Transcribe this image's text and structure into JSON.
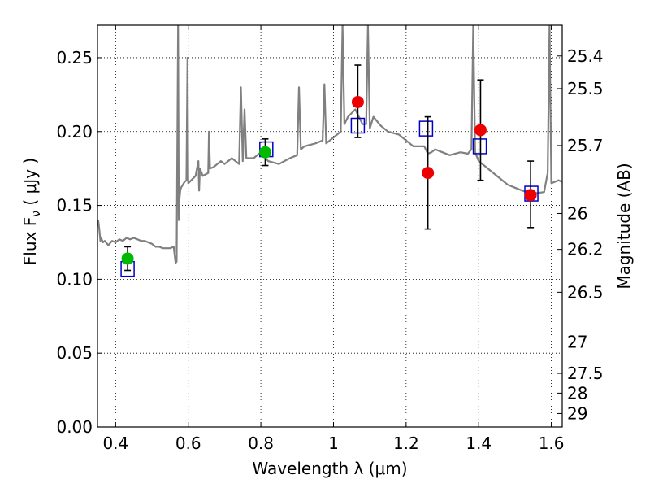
{
  "chart_data": {
    "type": "scatter",
    "xlabel": "Wavelength  λ (μm)",
    "ylabel": "Flux  F",
    "ylabel_sub": "ν",
    "ylabel_unit": "  ( μJy )",
    "y2label": "Magnitude (AB)",
    "xlim": [
      0.35,
      1.63
    ],
    "ylim": [
      0.0,
      0.272
    ],
    "grid": true,
    "x_ticks": [
      0.4,
      0.6,
      0.8,
      1.0,
      1.2,
      1.4,
      1.6
    ],
    "x_tick_labels": [
      "0.4",
      "0.6",
      "0.8",
      "1",
      "1.2",
      "1.4",
      "1.6"
    ],
    "y_ticks": [
      0.0,
      0.05,
      0.1,
      0.15,
      0.2,
      0.25
    ],
    "y_tick_labels": [
      "0.00",
      "0.05",
      "0.10",
      "0.15",
      "0.20",
      "0.25"
    ],
    "y2_ticks": [
      {
        "mag": 25.4,
        "label": "25.4"
      },
      {
        "mag": 25.5,
        "label": "25.5"
      },
      {
        "mag": 25.7,
        "label": "25.7"
      },
      {
        "mag": 26,
        "label": "26"
      },
      {
        "mag": 26.2,
        "label": "26.2"
      },
      {
        "mag": 26.5,
        "label": "26.5"
      },
      {
        "mag": 27,
        "label": "27"
      },
      {
        "mag": 27.5,
        "label": "27.5"
      },
      {
        "mag": 28,
        "label": "28"
      },
      {
        "mag": 29,
        "label": "29"
      }
    ],
    "colors": {
      "model_spectrum": "#808080",
      "model_photometry": "#0000cc",
      "observed_optical": "#00bb00",
      "observed_nir": "#ee0000",
      "errorbar": "#000000"
    },
    "series": [
      {
        "style": "line",
        "color": "#808080",
        "x": [
          0.352,
          0.355,
          0.358,
          0.36,
          0.365,
          0.37,
          0.38,
          0.39,
          0.4,
          0.41,
          0.42,
          0.43,
          0.44,
          0.45,
          0.46,
          0.47,
          0.48,
          0.49,
          0.5,
          0.51,
          0.52,
          0.53,
          0.54,
          0.55,
          0.56,
          0.565,
          0.568,
          0.572,
          0.574,
          0.576,
          0.578,
          0.58,
          0.59,
          0.595,
          0.598,
          0.6,
          0.62,
          0.628,
          0.63,
          0.632,
          0.64,
          0.655,
          0.657,
          0.66,
          0.67,
          0.68,
          0.69,
          0.7,
          0.72,
          0.74,
          0.745,
          0.75,
          0.755,
          0.76,
          0.78,
          0.8,
          0.82,
          0.85,
          0.88,
          0.9,
          0.905,
          0.91,
          0.92,
          0.95,
          0.97,
          0.975,
          0.98,
          1.0,
          1.02,
          1.025,
          1.03,
          1.04,
          1.06,
          1.08,
          1.09,
          1.095,
          1.1,
          1.11,
          1.13,
          1.15,
          1.18,
          1.2,
          1.22,
          1.24,
          1.25,
          1.26,
          1.27,
          1.28,
          1.3,
          1.32,
          1.35,
          1.37,
          1.38,
          1.385,
          1.39,
          1.4,
          1.42,
          1.44,
          1.46,
          1.48,
          1.5,
          1.52,
          1.55,
          1.58,
          1.59,
          1.595,
          1.6,
          1.61,
          1.62,
          1.63
        ],
        "y": [
          0.14,
          0.134,
          0.126,
          0.128,
          0.125,
          0.126,
          0.123,
          0.126,
          0.125,
          0.127,
          0.126,
          0.128,
          0.127,
          0.128,
          0.127,
          0.126,
          0.126,
          0.125,
          0.124,
          0.122,
          0.122,
          0.121,
          0.121,
          0.121,
          0.122,
          0.111,
          0.112,
          0.272,
          0.14,
          0.155,
          0.16,
          0.162,
          0.166,
          0.167,
          0.25,
          0.165,
          0.17,
          0.18,
          0.16,
          0.175,
          0.17,
          0.172,
          0.2,
          0.175,
          0.176,
          0.178,
          0.18,
          0.178,
          0.182,
          0.178,
          0.23,
          0.18,
          0.215,
          0.182,
          0.182,
          0.186,
          0.18,
          0.178,
          0.182,
          0.184,
          0.23,
          0.188,
          0.19,
          0.192,
          0.194,
          0.232,
          0.192,
          0.196,
          0.2,
          0.272,
          0.205,
          0.21,
          0.215,
          0.205,
          0.205,
          0.272,
          0.202,
          0.21,
          0.204,
          0.2,
          0.198,
          0.194,
          0.19,
          0.19,
          0.19,
          0.185,
          0.186,
          0.188,
          0.186,
          0.184,
          0.186,
          0.185,
          0.188,
          0.272,
          0.186,
          0.18,
          0.176,
          0.172,
          0.168,
          0.164,
          0.162,
          0.16,
          0.158,
          0.159,
          0.172,
          0.272,
          0.165,
          0.166,
          0.167,
          0.166
        ]
      },
      {
        "style": "open-square",
        "color": "#0000cc",
        "x": [
          0.433,
          0.815,
          1.067,
          1.255,
          1.403,
          1.545
        ],
        "y": [
          0.107,
          0.188,
          0.204,
          0.202,
          0.19,
          0.158
        ]
      },
      {
        "style": "filled-circle",
        "color": "#00bb00",
        "x": [
          0.433,
          0.812
        ],
        "y": [
          0.114,
          0.186
        ],
        "yerr_low": [
          0.106,
          0.177
        ],
        "yerr_high": [
          0.122,
          0.195
        ]
      },
      {
        "style": "filled-circle",
        "color": "#ee0000",
        "x": [
          1.067,
          1.26,
          1.405,
          1.543
        ],
        "y": [
          0.22,
          0.172,
          0.201,
          0.157
        ],
        "yerr_low": [
          0.196,
          0.134,
          0.167,
          0.135
        ],
        "yerr_high": [
          0.245,
          0.21,
          0.235,
          0.18
        ]
      }
    ]
  }
}
